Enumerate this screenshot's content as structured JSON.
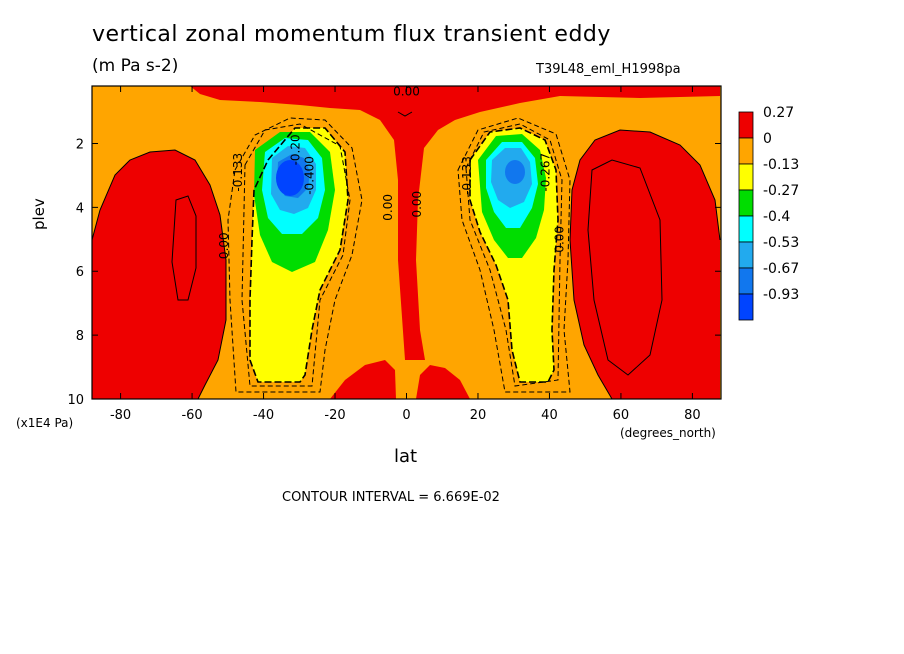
{
  "chart_data": {
    "type": "heatmap",
    "title": "vertical zonal momentum flux transient eddy",
    "subtitle": "(m Pa s-2)",
    "run_id": "T39L48_eml_H1998pa",
    "xlabel": "lat",
    "xunit": "(degrees_north)",
    "ylabel": "plev",
    "yunit": "(x1E4 Pa)",
    "xlim": [
      -88,
      88
    ],
    "ylim": [
      10,
      0.2
    ],
    "x_ticks": [
      "-80",
      "-60",
      "-40",
      "-20",
      "0",
      "20",
      "40",
      "60",
      "80"
    ],
    "x_tick_values": [
      -80,
      -60,
      -40,
      -20,
      0,
      20,
      40,
      60,
      80
    ],
    "y_ticks": [
      "2",
      "4",
      "6",
      "8",
      "10"
    ],
    "y_tick_values": [
      2,
      4,
      6,
      8,
      10
    ],
    "contour_interval": "CONTOUR INTERVAL = 6.669E-02",
    "legend_levels": [
      "0.27",
      "0",
      "-0.13",
      "-0.27",
      "-0.4",
      "-0.53",
      "-0.67",
      "-0.93"
    ],
    "legend_colors": [
      "#ee0000",
      "#ffa500",
      "#ffff00",
      "#00dd00",
      "#00ffff",
      "#22aaee",
      "#1177ee",
      "#0044ff"
    ],
    "contour_labels": [
      {
        "text": "0.00",
        "lat": 0,
        "plev": 0.5
      },
      {
        "text": "-0.133",
        "lat": -46,
        "plev": 2.9
      },
      {
        "text": "-0.400",
        "lat": -26,
        "plev": 3.0
      },
      {
        "text": "-0.20",
        "lat": -30,
        "plev": 2.2
      },
      {
        "text": "0.00",
        "lat": -50,
        "plev": 5.2
      },
      {
        "text": "0.00",
        "lat": -4,
        "plev": 4.0
      },
      {
        "text": "0.00",
        "lat": 4,
        "plev": 3.9
      },
      {
        "text": "-0.133",
        "lat": 18,
        "plev": 3.0
      },
      {
        "text": "-0.267",
        "lat": 40,
        "plev": 2.9
      },
      {
        "text": "0.00",
        "lat": 44,
        "plev": 5.0
      }
    ],
    "regions": [
      {
        "level": "0",
        "desc": "background"
      },
      {
        "level": "0.27",
        "lat_range": [
          -88,
          -50
        ],
        "note": "high-latitude south"
      },
      {
        "level": "0.27",
        "lat_range": [
          45,
          88
        ],
        "note": "high-latitude north"
      },
      {
        "level": "-0.93",
        "center_lat": -33,
        "center_plev": 3.0
      },
      {
        "level": "-0.67",
        "center_lat": 31,
        "center_plev": 2.9
      }
    ]
  }
}
